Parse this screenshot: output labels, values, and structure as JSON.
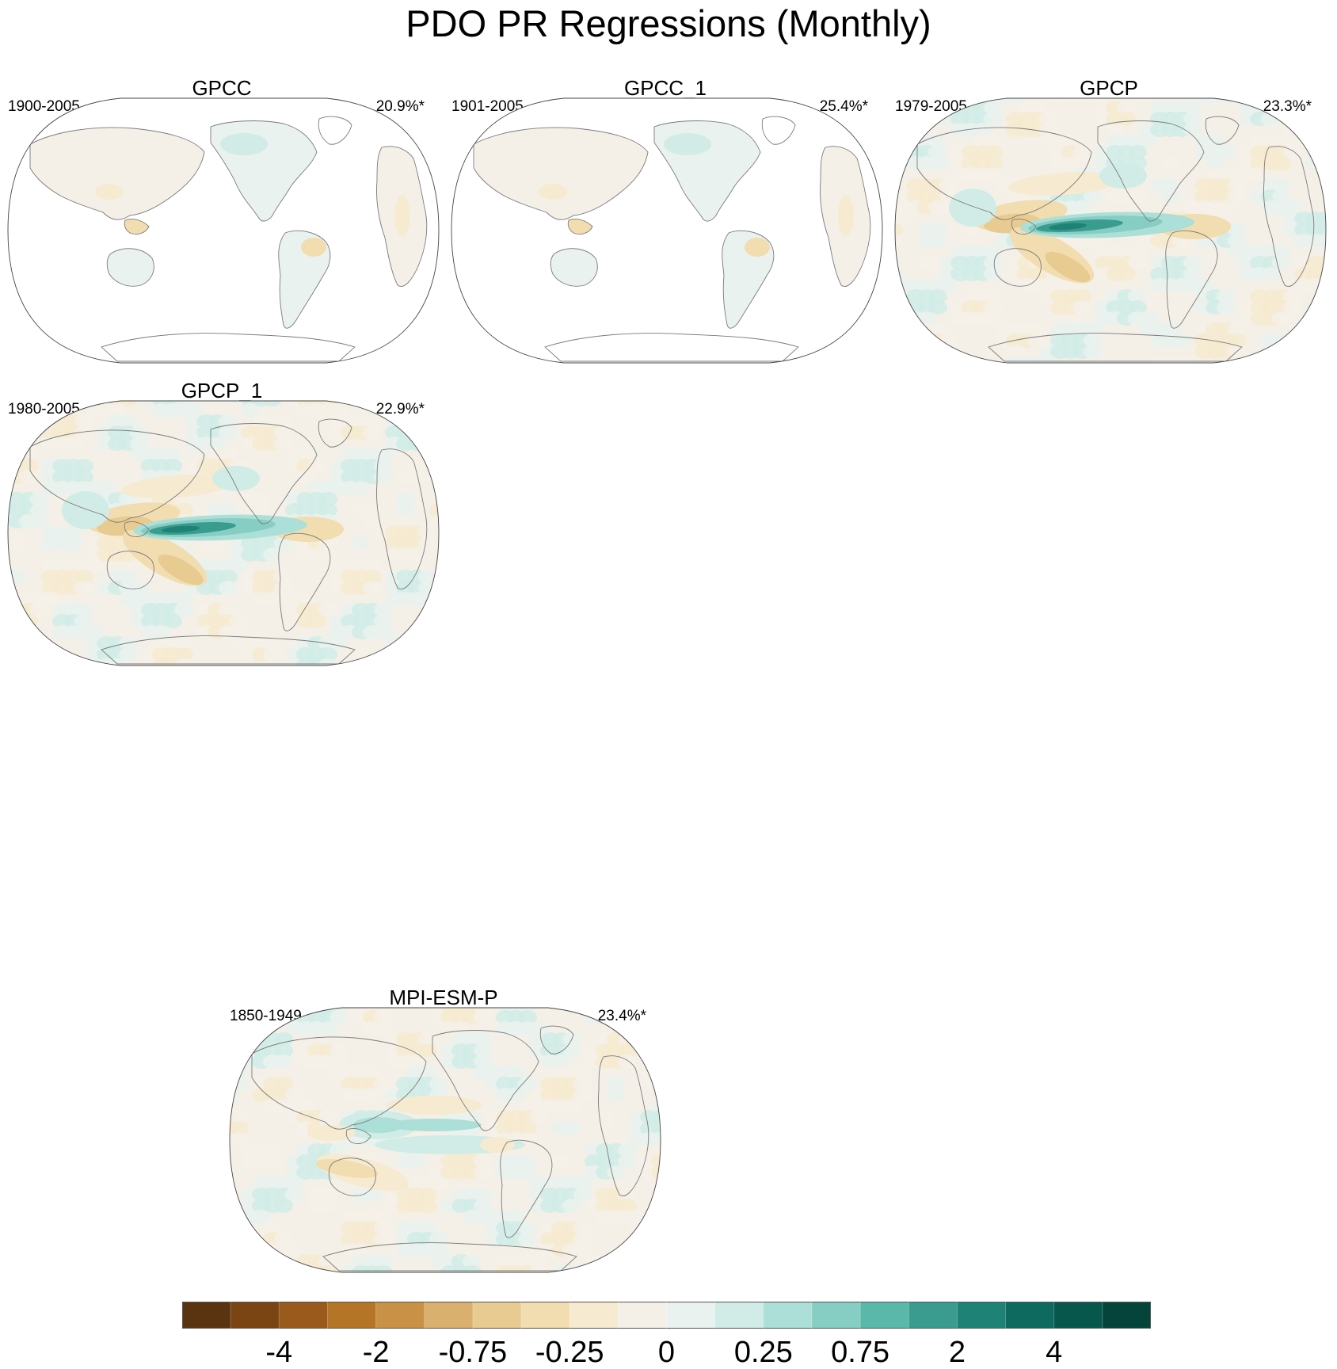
{
  "title": "PDO PR Regressions (Monthly)",
  "panels": [
    {
      "name": "GPCC",
      "period": "1900-2005",
      "variance": "20.9%*",
      "coverage": "land",
      "pattern": "weak-land"
    },
    {
      "name": "GPCC_1",
      "period": "1901-2005",
      "variance": "25.4%*",
      "coverage": "land",
      "pattern": "weak-land"
    },
    {
      "name": "GPCP",
      "period": "1979-2005",
      "variance": "23.3%*",
      "coverage": "global",
      "pattern": "strong-pacific"
    },
    {
      "name": "GPCP_1",
      "period": "1980-2005",
      "variance": "22.9%*",
      "coverage": "global",
      "pattern": "strong-pacific"
    },
    {
      "name": "MPI-ESM-P",
      "period": "1850-1949",
      "variance": "23.4%*",
      "coverage": "global",
      "pattern": "model"
    }
  ],
  "colorbar": {
    "colors": [
      "#5a3410",
      "#7b4513",
      "#995a1c",
      "#b47526",
      "#c99145",
      "#d9b06d",
      "#e8cb91",
      "#f2ddb0",
      "#f6ebd0",
      "#f4f0e8",
      "#e9f2ef",
      "#d1ece6",
      "#acdfd7",
      "#86cec3",
      "#5ab8aa",
      "#3a9c8f",
      "#1f8276",
      "#0e6a5f",
      "#08574d",
      "#04443a"
    ],
    "labels": [
      {
        "text": "-4",
        "boundary": 2
      },
      {
        "text": "-2",
        "boundary": 4
      },
      {
        "text": "-0.75",
        "boundary": 6
      },
      {
        "text": "-0.25",
        "boundary": 8
      },
      {
        "text": "0",
        "boundary": 10
      },
      {
        "text": "0.25",
        "boundary": 12
      },
      {
        "text": "0.75",
        "boundary": 14
      },
      {
        "text": "2",
        "boundary": 16
      },
      {
        "text": "4",
        "boundary": 18
      }
    ]
  }
}
